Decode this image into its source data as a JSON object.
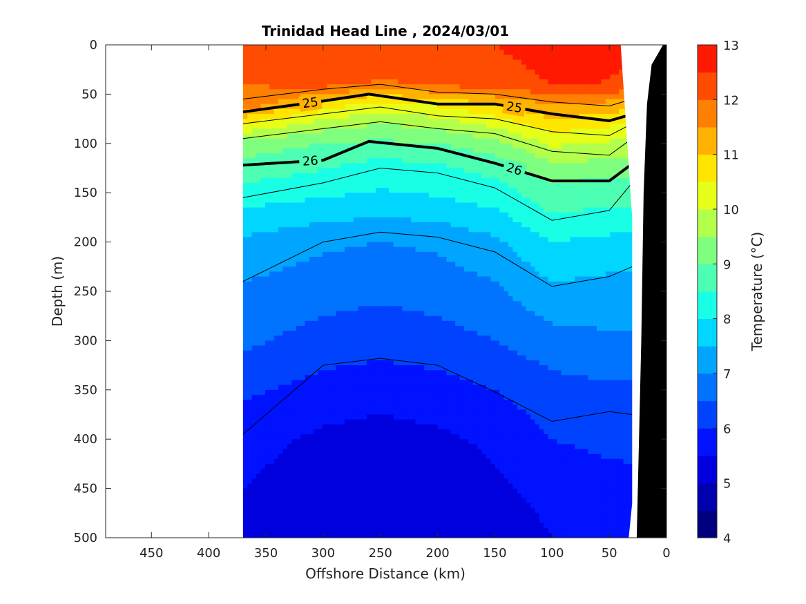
{
  "chart_data": {
    "type": "heatmap",
    "subtype": "filled-contour-section",
    "title": "Trinidad Head Line , 2024/03/01",
    "xlabel": "Offshore Distance (km)",
    "ylabel": "Depth (m)",
    "x_reversed": true,
    "y_reversed": true,
    "xlim": [
      0,
      490
    ],
    "ylim": [
      0,
      500
    ],
    "x_ticks": [
      "450",
      "400",
      "350",
      "300",
      "250",
      "200",
      "150",
      "100",
      "50",
      "0"
    ],
    "y_ticks": [
      "0",
      "50",
      "100",
      "150",
      "200",
      "250",
      "300",
      "350",
      "400",
      "450",
      "500"
    ],
    "colorbar": {
      "label": "Temperature (°C)",
      "min": 4,
      "max": 13,
      "step": 0.5,
      "tick_labels": [
        "4",
        "5",
        "6",
        "7",
        "8",
        "9",
        "10",
        "11",
        "12",
        "13"
      ],
      "colors": [
        "#00007f",
        "#0000af",
        "#0000df",
        "#0012ff",
        "#0043ff",
        "#0074ff",
        "#00a5ff",
        "#00d6ff",
        "#19ffe6",
        "#4cffb2",
        "#7fff7f",
        "#b2ff4c",
        "#e6ff19",
        "#ffe600",
        "#ffb200",
        "#ff7f00",
        "#ff4c00",
        "#ff1900"
      ]
    },
    "temperature_profiles": {
      "x_km": [
        370,
        300,
        250,
        200,
        150,
        100,
        60,
        30
      ],
      "depth_m": [
        0,
        20,
        40,
        60,
        80,
        100,
        120,
        140,
        160,
        200,
        250,
        300,
        350,
        400,
        450,
        500
      ],
      "temp_c": [
        [
          12.2,
          12.1,
          12.0,
          11.9,
          10.5,
          9.3,
          8.9,
          8.5,
          8.1,
          7.4,
          6.9,
          6.6,
          6.1,
          5.7,
          5.5,
          5.3
        ],
        [
          12.3,
          12.3,
          12.2,
          10.8,
          9.8,
          9.0,
          8.6,
          8.3,
          7.9,
          7.1,
          6.7,
          6.3,
          5.8,
          5.4,
          5.2,
          5.1
        ],
        [
          12.3,
          12.3,
          11.9,
          10.3,
          9.5,
          8.9,
          8.4,
          8.1,
          7.8,
          7.0,
          6.6,
          6.2,
          5.7,
          5.3,
          5.1,
          5.0
        ],
        [
          12.3,
          12.3,
          12.1,
          10.6,
          9.7,
          9.0,
          8.5,
          8.2,
          7.9,
          7.1,
          6.7,
          6.3,
          5.8,
          5.4,
          5.1,
          5.0
        ],
        [
          12.5,
          12.4,
          12.3,
          11.0,
          10.2,
          9.3,
          8.8,
          8.4,
          8.1,
          7.4,
          6.9,
          6.5,
          6.0,
          5.6,
          5.4,
          5.1
        ],
        [
          12.7,
          12.6,
          12.5,
          11.5,
          10.8,
          10.1,
          9.5,
          9.0,
          8.7,
          8.0,
          7.4,
          6.8,
          6.3,
          6.0,
          5.7,
          5.5
        ],
        [
          12.8,
          12.6,
          12.5,
          11.4,
          10.7,
          10.0,
          9.4,
          8.9,
          8.6,
          7.9,
          7.3,
          6.9,
          6.4,
          6.1,
          5.8,
          5.6
        ],
        [
          12.6,
          12.5,
          12.4,
          11.2,
          10.4,
          9.8,
          9.3,
          8.9,
          8.6,
          7.8,
          7.3,
          6.9,
          6.4,
          6.1,
          5.9,
          5.7
        ]
      ]
    },
    "density_contours": [
      {
        "label": "25",
        "x_km": [
          370,
          300,
          260,
          200,
          150,
          100,
          50,
          20
        ],
        "depth_m": [
          68,
          57,
          50,
          60,
          60,
          70,
          77,
          67
        ]
      },
      {
        "label": "26",
        "x_km": [
          370,
          300,
          260,
          200,
          150,
          100,
          50,
          20
        ],
        "depth_m": [
          122,
          117,
          98,
          105,
          120,
          138,
          138,
          112
        ]
      }
    ],
    "thin_contours": [
      {
        "x_km": [
          370,
          300,
          250,
          200,
          150,
          100,
          50,
          30
        ],
        "depth_m": [
          55,
          45,
          40,
          48,
          50,
          58,
          62,
          55
        ]
      },
      {
        "x_km": [
          370,
          300,
          250,
          200,
          150,
          100,
          50,
          30
        ],
        "depth_m": [
          80,
          70,
          63,
          72,
          75,
          88,
          92,
          80
        ]
      },
      {
        "x_km": [
          370,
          300,
          250,
          200,
          150,
          100,
          50,
          30
        ],
        "depth_m": [
          95,
          85,
          78,
          85,
          90,
          108,
          112,
          95
        ]
      },
      {
        "x_km": [
          370,
          300,
          250,
          200,
          150,
          100,
          50,
          30
        ],
        "depth_m": [
          155,
          140,
          125,
          130,
          145,
          178,
          168,
          140
        ]
      },
      {
        "x_km": [
          370,
          300,
          250,
          200,
          150,
          100,
          50,
          30
        ],
        "depth_m": [
          240,
          200,
          190,
          195,
          210,
          245,
          235,
          225
        ]
      },
      {
        "x_km": [
          370,
          300,
          250,
          200,
          150,
          100,
          50,
          30
        ],
        "depth_m": [
          395,
          325,
          318,
          325,
          352,
          382,
          372,
          375
        ]
      }
    ],
    "bathymetry_bottom": {
      "x_km": [
        0,
        22,
        25,
        27,
        30,
        31,
        40,
        40,
        18
      ],
      "depth_m": [
        0,
        500,
        500,
        360,
        180,
        170,
        465,
        500,
        0
      ]
    }
  }
}
